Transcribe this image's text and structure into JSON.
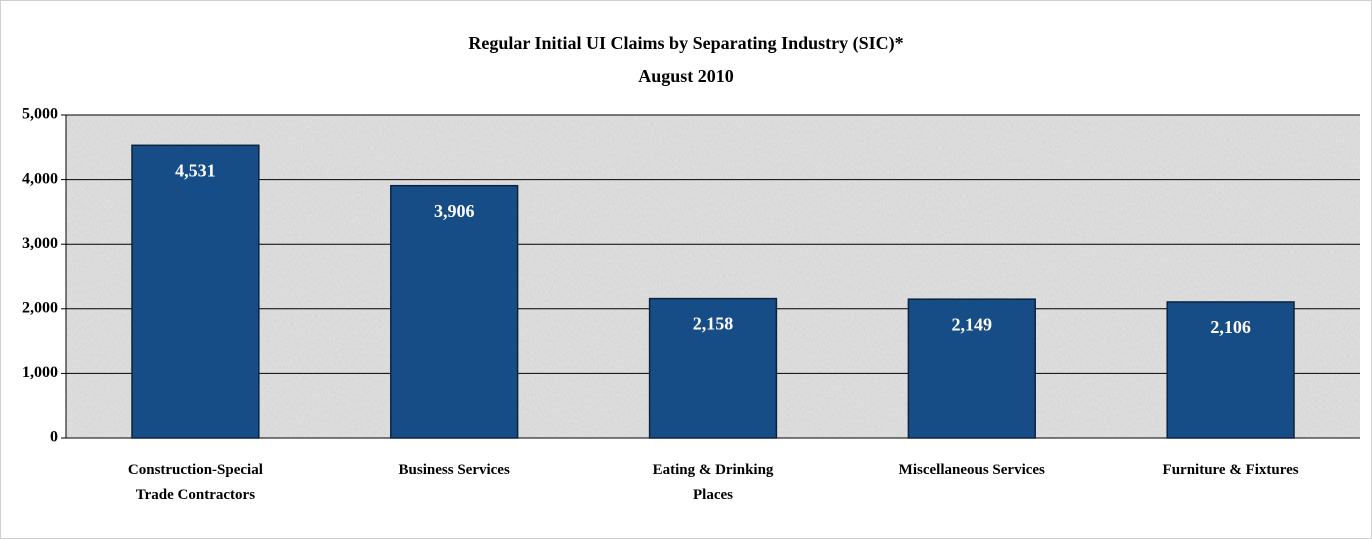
{
  "chart_data": {
    "type": "bar",
    "title": "Regular Initial UI Claims by Separating Industry (SIC)*",
    "subtitle": "August 2010",
    "categories": [
      "Construction-Special Trade Contractors",
      "Business Services",
      "Eating & Drinking Places",
      "Miscellaneous Services",
      "Furniture & Fixtures"
    ],
    "values": [
      4531,
      3906,
      2158,
      2149,
      2106
    ],
    "value_labels": [
      "4,531",
      "3,906",
      "2,158",
      "2,149",
      "2,106"
    ],
    "color": "#174d87",
    "ylim": [
      0,
      5000
    ],
    "yticks": [
      0,
      {
        "value": 1000,
        "label": "1,000"
      },
      {
        "value": 2000,
        "label": "2,000"
      },
      {
        "value": 3000,
        "label": "3,000"
      },
      {
        "value": 4000,
        "label": "4,000"
      },
      {
        "value": 5000,
        "label": "5,000"
      }
    ],
    "grid": true
  }
}
